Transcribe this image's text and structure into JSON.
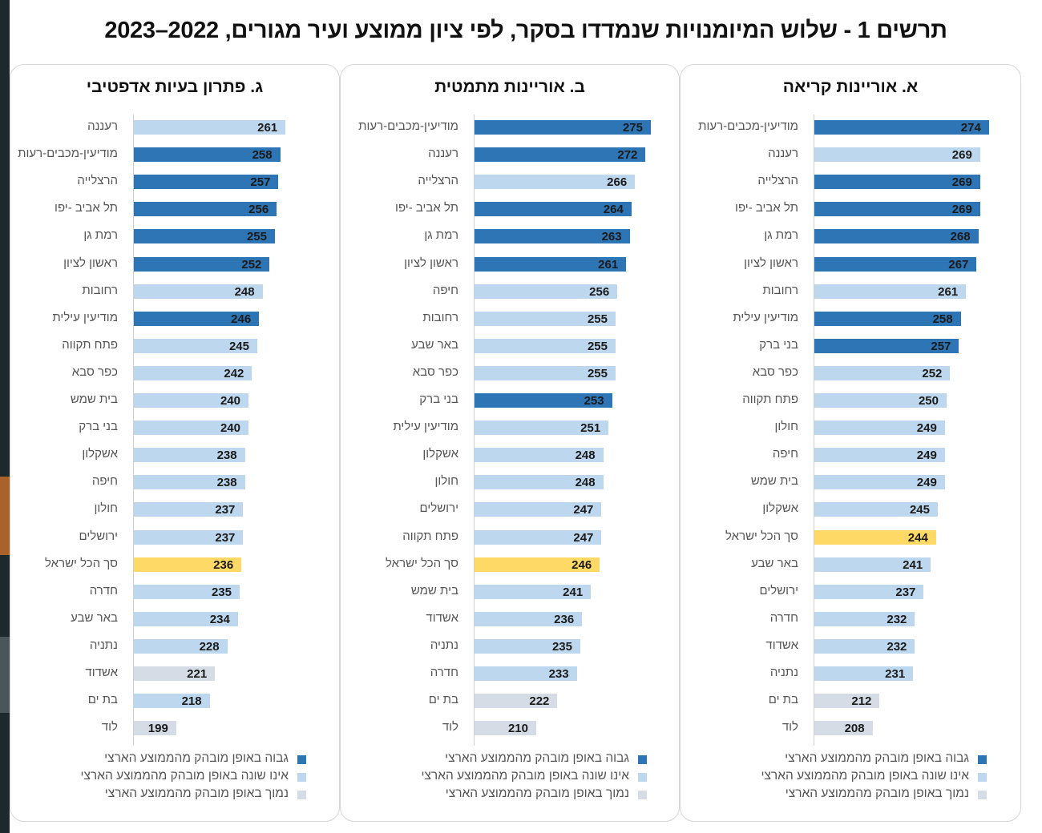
{
  "title": "תרשים 1 - שלוש המיומנויות שנמדדו בסקר, לפי ציון ממוצע ועיר מגורים, 2022–2023",
  "colors": {
    "high": "#2e75b6",
    "not_different": "#bdd7ee",
    "low": "#d6dce5",
    "national": "#ffd966"
  },
  "legend": [
    {
      "key": "high",
      "label": "גבוה באופן מובהק מהממוצע הארצי"
    },
    {
      "key": "not_different",
      "label": "אינו שונה באופן מובהק מהממוצע הארצי"
    },
    {
      "key": "low",
      "label": "נמוך באופן מובהק מהממוצע הארצי"
    }
  ],
  "chart_data": [
    {
      "type": "bar",
      "orientation": "horizontal",
      "title": "א. אוריינות קריאה",
      "categories": [
        "מודיעין-מכבים-רעות",
        "רעננה",
        "הרצלייה",
        "תל אביב -יפו",
        "רמת גן",
        "ראשון לציון",
        "רחובות",
        "מודיעין עילית",
        "בני ברק",
        "כפר סבא",
        "פתח תקווה",
        "חולון",
        "חיפה",
        "בית שמש",
        "אשקלון",
        "סך הכל ישראל",
        "באר שבע",
        "ירושלים",
        "חדרה",
        "אשדוד",
        "נתניה",
        "בת ים",
        "לוד"
      ],
      "values": [
        274,
        269,
        269,
        269,
        268,
        267,
        261,
        258,
        257,
        252,
        250,
        249,
        249,
        249,
        245,
        244,
        241,
        237,
        232,
        232,
        231,
        212,
        208
      ],
      "status": [
        "high",
        "not_different",
        "high",
        "high",
        "high",
        "high",
        "not_different",
        "high",
        "high",
        "not_different",
        "not_different",
        "not_different",
        "not_different",
        "not_different",
        "not_different",
        "national",
        "not_different",
        "not_different",
        "not_different",
        "not_different",
        "not_different",
        "low",
        "low"
      ],
      "xlabel": "",
      "ylabel": "",
      "grid": false,
      "legend": "bottom"
    },
    {
      "type": "bar",
      "orientation": "horizontal",
      "title": "ב. אוריינות מתמטית",
      "categories": [
        "מודיעין-מכבים-רעות",
        "רעננה",
        "הרצלייה",
        "תל אביב -יפו",
        "רמת גן",
        "ראשון לציון",
        "חיפה",
        "רחובות",
        "באר שבע",
        "כפר סבא",
        "בני ברק",
        "מודיעין עילית",
        "אשקלון",
        "חולון",
        "ירושלים",
        "פתח תקווה",
        "סך הכל ישראל",
        "בית שמש",
        "אשדוד",
        "נתניה",
        "חדרה",
        "בת ים",
        "לוד"
      ],
      "values": [
        275,
        272,
        266,
        264,
        263,
        261,
        256,
        255,
        255,
        255,
        253,
        251,
        248,
        248,
        247,
        247,
        246,
        241,
        236,
        235,
        233,
        222,
        210
      ],
      "status": [
        "high",
        "high",
        "not_different",
        "high",
        "high",
        "high",
        "not_different",
        "not_different",
        "not_different",
        "not_different",
        "high",
        "not_different",
        "not_different",
        "not_different",
        "not_different",
        "not_different",
        "national",
        "not_different",
        "not_different",
        "not_different",
        "not_different",
        "low",
        "low"
      ],
      "xlabel": "",
      "ylabel": "",
      "grid": false,
      "legend": "bottom"
    },
    {
      "type": "bar",
      "orientation": "horizontal",
      "title": "ג. פתרון בעיות אדפטיבי",
      "categories": [
        "רעננה",
        "מודיעין-מכבים-רעות",
        "הרצלייה",
        "תל אביב -יפו",
        "רמת גן",
        "ראשון לציון",
        "רחובות",
        "מודיעין עילית",
        "פתח תקווה",
        "כפר סבא",
        "בית שמש",
        "בני ברק",
        "אשקלון",
        "חיפה",
        "חולון",
        "ירושלים",
        "סך הכל ישראל",
        "חדרה",
        "באר שבע",
        "נתניה",
        "אשדוד",
        "בת ים",
        "לוד"
      ],
      "values": [
        261,
        258,
        257,
        256,
        255,
        252,
        248,
        246,
        245,
        242,
        240,
        240,
        238,
        238,
        237,
        237,
        236,
        235,
        234,
        228,
        221,
        218,
        199
      ],
      "status": [
        "not_different",
        "high",
        "high",
        "high",
        "high",
        "high",
        "not_different",
        "high",
        "not_different",
        "not_different",
        "not_different",
        "not_different",
        "not_different",
        "not_different",
        "not_different",
        "not_different",
        "national",
        "not_different",
        "not_different",
        "not_different",
        "low",
        "not_different",
        "low"
      ],
      "xlabel": "",
      "ylabel": "",
      "grid": false,
      "legend": "bottom"
    }
  ]
}
